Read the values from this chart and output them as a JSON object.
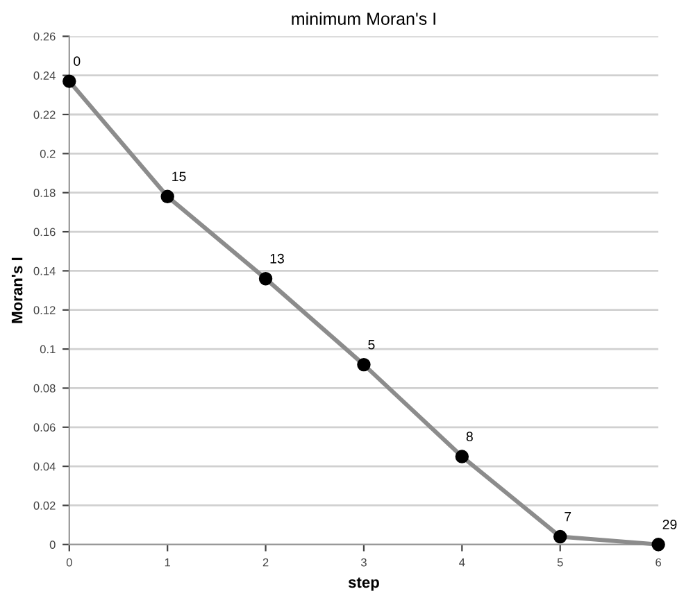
{
  "chart_data": {
    "type": "line",
    "title": "minimum Moran's I",
    "xlabel": "step",
    "ylabel": "Moran's I",
    "x": [
      0,
      1,
      2,
      3,
      4,
      5,
      6
    ],
    "series": [
      {
        "color": "#8c8c8c",
        "values": [
          0.237,
          0.178,
          0.136,
          0.092,
          0.045,
          0.004,
          0.0
        ]
      }
    ],
    "xlim": [
      0,
      6
    ],
    "xticks": [
      0,
      1,
      2,
      3,
      4,
      5,
      6
    ],
    "ylim": [
      0,
      0.26
    ],
    "yticks": [
      0,
      0.02,
      0.04,
      0.06,
      0.08,
      0.1,
      0.12,
      0.14,
      0.16,
      0.18,
      0.2,
      0.22,
      0.24,
      0.26
    ],
    "marker": "circle",
    "line_style": "solid",
    "grid": "y",
    "legend": false,
    "annotations": [
      {
        "text": "0",
        "x": 0,
        "y": 0.237
      },
      {
        "text": "15",
        "x": 1,
        "y": 0.178
      },
      {
        "text": "13",
        "x": 2,
        "y": 0.136
      },
      {
        "text": "5",
        "x": 3,
        "y": 0.092
      },
      {
        "text": "8",
        "x": 4,
        "y": 0.045
      },
      {
        "text": "7",
        "x": 5,
        "y": 0.004
      },
      {
        "text": "29",
        "x": 6,
        "y": 0.0
      }
    ]
  }
}
